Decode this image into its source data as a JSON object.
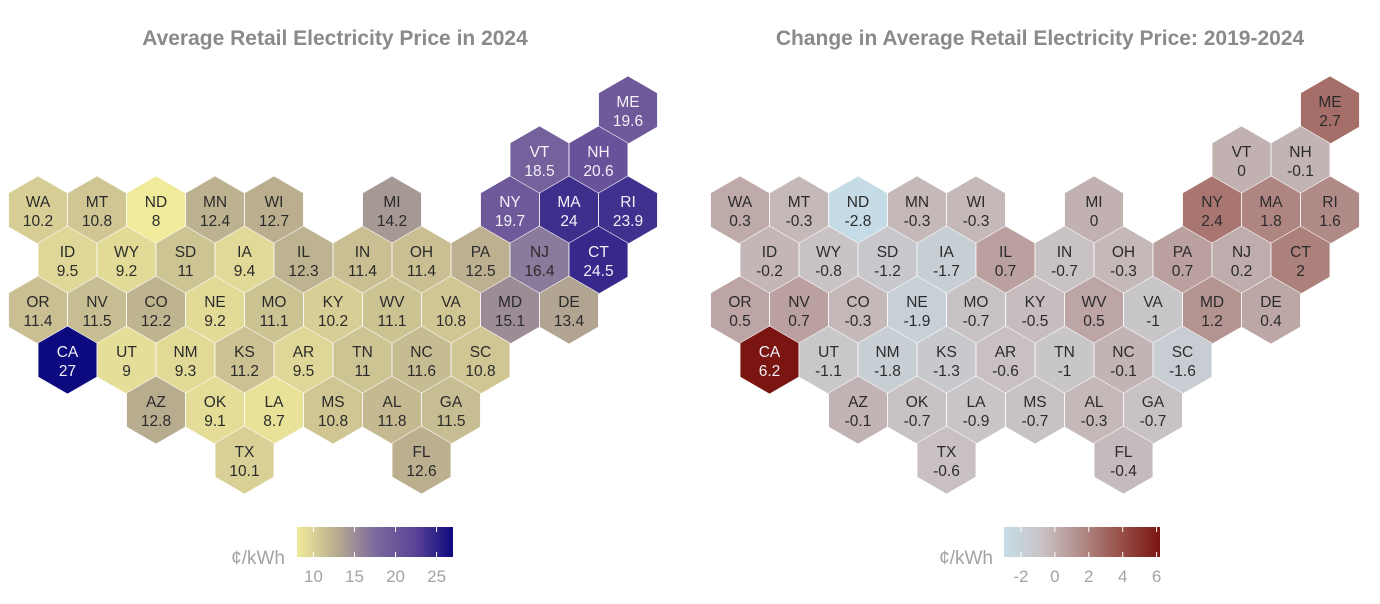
{
  "chart_data": [
    {
      "type": "heatmap",
      "subtype": "hex-tile-map",
      "title": "Average Retail Electricity Price in 2024",
      "legend": {
        "label": "¢/kWh",
        "ticks": [
          10,
          15,
          20,
          25
        ],
        "range": [
          8,
          27
        ],
        "colors": [
          "#f0eb9a",
          "#b9ad8f",
          "#7c6a9e",
          "#5d4596",
          "#0c0a7e"
        ],
        "placement": "bottom-center"
      },
      "states": [
        {
          "abbr": "ME",
          "value": 19.6
        },
        {
          "abbr": "VT",
          "value": 18.5
        },
        {
          "abbr": "NH",
          "value": 20.6
        },
        {
          "abbr": "WA",
          "value": 10.2
        },
        {
          "abbr": "MT",
          "value": 10.8
        },
        {
          "abbr": "ND",
          "value": 8
        },
        {
          "abbr": "MN",
          "value": 12.4
        },
        {
          "abbr": "WI",
          "value": 12.7
        },
        {
          "abbr": "MI",
          "value": 14.2
        },
        {
          "abbr": "NY",
          "value": 19.7
        },
        {
          "abbr": "MA",
          "value": 24
        },
        {
          "abbr": "RI",
          "value": 23.9
        },
        {
          "abbr": "ID",
          "value": 9.5
        },
        {
          "abbr": "WY",
          "value": 9.2
        },
        {
          "abbr": "SD",
          "value": 11
        },
        {
          "abbr": "IA",
          "value": 9.4
        },
        {
          "abbr": "IL",
          "value": 12.3
        },
        {
          "abbr": "IN",
          "value": 11.4
        },
        {
          "abbr": "OH",
          "value": 11.4
        },
        {
          "abbr": "PA",
          "value": 12.5
        },
        {
          "abbr": "NJ",
          "value": 16.4
        },
        {
          "abbr": "CT",
          "value": 24.5
        },
        {
          "abbr": "OR",
          "value": 11.4
        },
        {
          "abbr": "NV",
          "value": 11.5
        },
        {
          "abbr": "CO",
          "value": 12.2
        },
        {
          "abbr": "NE",
          "value": 9.2
        },
        {
          "abbr": "MO",
          "value": 11.1
        },
        {
          "abbr": "KY",
          "value": 10.2
        },
        {
          "abbr": "WV",
          "value": 11.1
        },
        {
          "abbr": "VA",
          "value": 10.8
        },
        {
          "abbr": "MD",
          "value": 15.1
        },
        {
          "abbr": "DE",
          "value": 13.4
        },
        {
          "abbr": "CA",
          "value": 27
        },
        {
          "abbr": "UT",
          "value": 9
        },
        {
          "abbr": "NM",
          "value": 9.3
        },
        {
          "abbr": "KS",
          "value": 11.2
        },
        {
          "abbr": "AR",
          "value": 9.5
        },
        {
          "abbr": "TN",
          "value": 11
        },
        {
          "abbr": "NC",
          "value": 11.6
        },
        {
          "abbr": "SC",
          "value": 10.8
        },
        {
          "abbr": "AZ",
          "value": 12.8
        },
        {
          "abbr": "OK",
          "value": 9.1
        },
        {
          "abbr": "LA",
          "value": 8.7
        },
        {
          "abbr": "MS",
          "value": 10.8
        },
        {
          "abbr": "AL",
          "value": 11.8
        },
        {
          "abbr": "GA",
          "value": 11.5
        },
        {
          "abbr": "TX",
          "value": 10.1
        },
        {
          "abbr": "FL",
          "value": 12.6
        }
      ]
    },
    {
      "type": "heatmap",
      "subtype": "hex-tile-map",
      "title": "Change in Average Retail Electricity Price: 2019-2024",
      "legend": {
        "label": "¢/kWh",
        "ticks": [
          -2,
          0,
          2,
          4,
          6
        ],
        "range": [
          -3,
          6.2
        ],
        "colors": [
          "#c5dde8",
          "#c9c2c4",
          "#b08a86",
          "#984f48",
          "#7a1512"
        ],
        "placement": "bottom-center"
      },
      "states": [
        {
          "abbr": "ME",
          "value": 2.7
        },
        {
          "abbr": "VT",
          "value": 0
        },
        {
          "abbr": "NH",
          "value": -0.1
        },
        {
          "abbr": "WA",
          "value": 0.3
        },
        {
          "abbr": "MT",
          "value": -0.3
        },
        {
          "abbr": "ND",
          "value": -2.8
        },
        {
          "abbr": "MN",
          "value": -0.3
        },
        {
          "abbr": "WI",
          "value": -0.3
        },
        {
          "abbr": "MI",
          "value": 0
        },
        {
          "abbr": "NY",
          "value": 2.4
        },
        {
          "abbr": "MA",
          "value": 1.8
        },
        {
          "abbr": "RI",
          "value": 1.6
        },
        {
          "abbr": "ID",
          "value": -0.2
        },
        {
          "abbr": "WY",
          "value": -0.8
        },
        {
          "abbr": "SD",
          "value": -1.2
        },
        {
          "abbr": "IA",
          "value": -1.7
        },
        {
          "abbr": "IL",
          "value": 0.7
        },
        {
          "abbr": "IN",
          "value": -0.7
        },
        {
          "abbr": "OH",
          "value": -0.3
        },
        {
          "abbr": "PA",
          "value": 0.7
        },
        {
          "abbr": "NJ",
          "value": 0.2
        },
        {
          "abbr": "CT",
          "value": 2
        },
        {
          "abbr": "OR",
          "value": 0.5
        },
        {
          "abbr": "NV",
          "value": 0.7
        },
        {
          "abbr": "CO",
          "value": -0.3
        },
        {
          "abbr": "NE",
          "value": -1.9
        },
        {
          "abbr": "MO",
          "value": -0.7
        },
        {
          "abbr": "KY",
          "value": -0.5
        },
        {
          "abbr": "WV",
          "value": 0.5
        },
        {
          "abbr": "VA",
          "value": -1
        },
        {
          "abbr": "MD",
          "value": 1.2
        },
        {
          "abbr": "DE",
          "value": 0.4
        },
        {
          "abbr": "CA",
          "value": 6.2
        },
        {
          "abbr": "UT",
          "value": -1.1
        },
        {
          "abbr": "NM",
          "value": -1.8
        },
        {
          "abbr": "KS",
          "value": -1.3
        },
        {
          "abbr": "AR",
          "value": -0.6
        },
        {
          "abbr": "TN",
          "value": -1
        },
        {
          "abbr": "NC",
          "value": -0.1
        },
        {
          "abbr": "SC",
          "value": -1.6
        },
        {
          "abbr": "AZ",
          "value": -0.1
        },
        {
          "abbr": "OK",
          "value": -0.7
        },
        {
          "abbr": "LA",
          "value": -0.9
        },
        {
          "abbr": "MS",
          "value": -0.7
        },
        {
          "abbr": "AL",
          "value": -0.3
        },
        {
          "abbr": "GA",
          "value": -0.7
        },
        {
          "abbr": "TX",
          "value": -0.6
        },
        {
          "abbr": "FL",
          "value": -0.4
        }
      ]
    }
  ]
}
